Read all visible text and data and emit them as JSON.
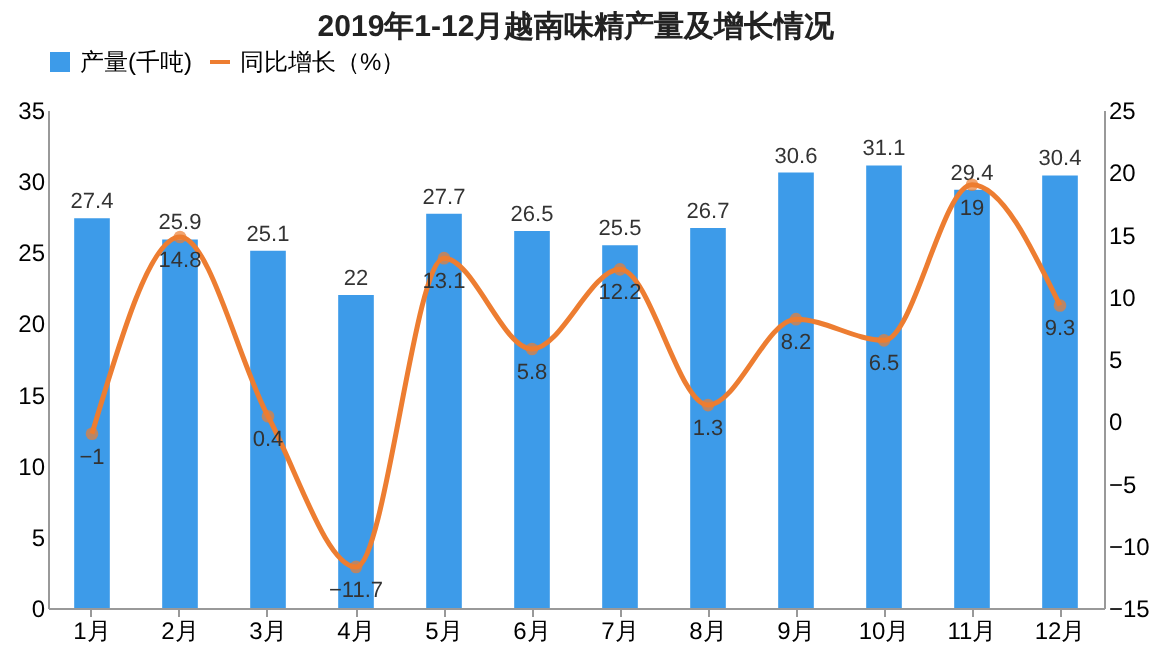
{
  "chart_data": {
    "type": "bar",
    "title": "2019年1-12月越南味精产量及增长情况",
    "categories": [
      "1月",
      "2月",
      "3月",
      "4月",
      "5月",
      "6月",
      "7月",
      "8月",
      "9月",
      "10月",
      "11月",
      "12月"
    ],
    "series": [
      {
        "name": "产量(千吨)",
        "color": "#3d9be9",
        "values": [
          27.4,
          25.9,
          25.1,
          22,
          27.7,
          26.5,
          25.5,
          26.7,
          30.6,
          31.1,
          29.4,
          30.4
        ]
      },
      {
        "name": "同比增长（%）",
        "type": "line",
        "axis": "y2",
        "color": "#ed7d31",
        "values": [
          -1,
          14.8,
          0.4,
          -11.7,
          13.1,
          5.8,
          12.2,
          1.3,
          8.2,
          6.5,
          19,
          9.3
        ]
      }
    ],
    "ylim": [
      0,
      35
    ],
    "yticks": [
      0,
      5,
      10,
      15,
      20,
      25,
      30,
      35
    ],
    "y2lim": [
      -15,
      25
    ],
    "y2ticks": [
      -15,
      -10,
      -5,
      0,
      5,
      10,
      15,
      20,
      25
    ],
    "data_labels": true,
    "legend": "top",
    "grid": false,
    "marker": "circle",
    "line_style": "solid"
  }
}
